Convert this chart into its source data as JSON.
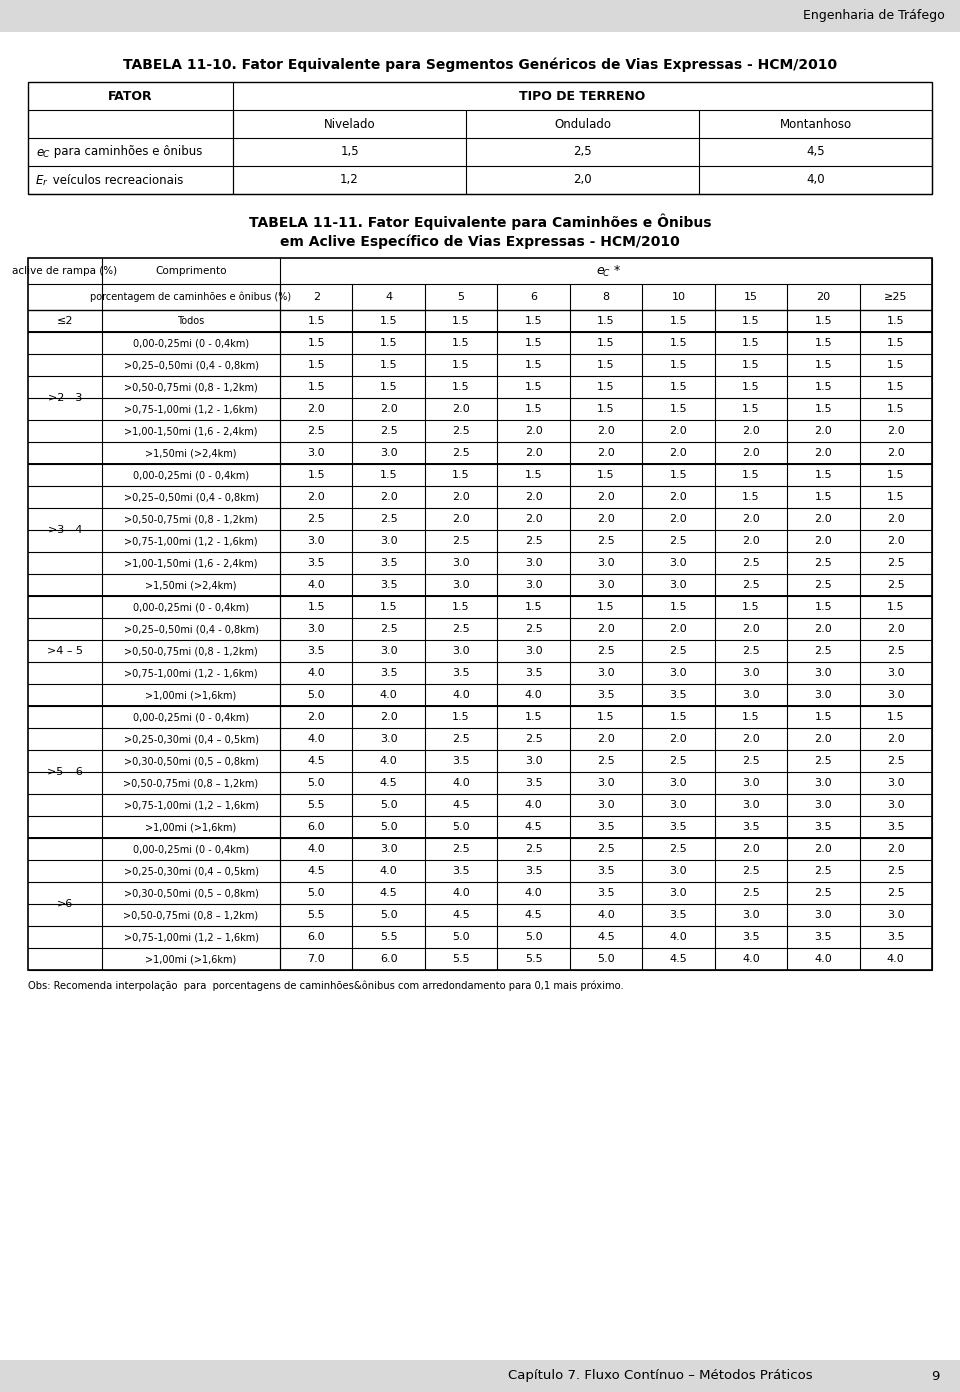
{
  "page_header": "Engenharia de Tráfego",
  "table1_title": "TABELA 11-10. Fator Equivalente para Segmentos Genéricos de Vias Expressas - HCM/2010",
  "table1_col1_header": "FATOR",
  "table1_col2_header": "TIPO DE TERRENO",
  "table1_sub_headers": [
    "Nivelado",
    "Ondulado",
    "Montanhoso"
  ],
  "table1_row_labels": [
    "eC para caminhoes e onibus",
    "Er veiculos recreacionais"
  ],
  "table1_row_data": [
    [
      "1,5",
      "2,5",
      "4,5"
    ],
    [
      "1,2",
      "2,0",
      "4,0"
    ]
  ],
  "table2_title_line1": "TABELA 11-11. Fator Equivalente para Caminhões e Ônibus",
  "table2_title_line2": "em Aclive Específico de Vias Expressas - HCM/2010",
  "table2_col1": "aclive de rampa (%)",
  "table2_col2": "Comprimento",
  "table2_pct_header": "porcentagem de caminhões e ônibus (%)",
  "table2_pct_values": [
    "2",
    "4",
    "5",
    "6",
    "8",
    "10",
    "15",
    "20",
    "≥25"
  ],
  "table2_data": [
    {
      "grade": "≤2",
      "rows": [
        {
          "length": "Todos",
          "values": [
            "1.5",
            "1.5",
            "1.5",
            "1.5",
            "1.5",
            "1.5",
            "1.5",
            "1.5",
            "1.5"
          ]
        }
      ]
    },
    {
      "grade": ">2 - 3",
      "rows": [
        {
          "length": "0,00-0,25mi (0 - 0,4km)",
          "values": [
            "1.5",
            "1.5",
            "1.5",
            "1.5",
            "1.5",
            "1.5",
            "1.5",
            "1.5",
            "1.5"
          ]
        },
        {
          "length": ">0,25–0,50mi (0,4 - 0,8km)",
          "values": [
            "1.5",
            "1.5",
            "1.5",
            "1.5",
            "1.5",
            "1.5",
            "1.5",
            "1.5",
            "1.5"
          ]
        },
        {
          "length": ">0,50-0,75mi (0,8 - 1,2km)",
          "values": [
            "1.5",
            "1.5",
            "1.5",
            "1.5",
            "1.5",
            "1.5",
            "1.5",
            "1.5",
            "1.5"
          ]
        },
        {
          "length": ">0,75-1,00mi (1,2 - 1,6km)",
          "values": [
            "2.0",
            "2.0",
            "2.0",
            "1.5",
            "1.5",
            "1.5",
            "1.5",
            "1.5",
            "1.5"
          ]
        },
        {
          "length": ">1,00-1,50mi (1,6 - 2,4km)",
          "values": [
            "2.5",
            "2.5",
            "2.5",
            "2.0",
            "2.0",
            "2.0",
            "2.0",
            "2.0",
            "2.0"
          ]
        },
        {
          "length": ">1,50mi (>2,4km)",
          "values": [
            "3.0",
            "3.0",
            "2.5",
            "2.0",
            "2.0",
            "2.0",
            "2.0",
            "2.0",
            "2.0"
          ]
        }
      ]
    },
    {
      "grade": ">3 - 4",
      "rows": [
        {
          "length": "0,00-0,25mi (0 - 0,4km)",
          "values": [
            "1.5",
            "1.5",
            "1.5",
            "1.5",
            "1.5",
            "1.5",
            "1.5",
            "1.5",
            "1.5"
          ]
        },
        {
          "length": ">0,25–0,50mi (0,4 - 0,8km)",
          "values": [
            "2.0",
            "2.0",
            "2.0",
            "2.0",
            "2.0",
            "2.0",
            "1.5",
            "1.5",
            "1.5"
          ]
        },
        {
          "length": ">0,50-0,75mi (0,8 - 1,2km)",
          "values": [
            "2.5",
            "2.5",
            "2.0",
            "2.0",
            "2.0",
            "2.0",
            "2.0",
            "2.0",
            "2.0"
          ]
        },
        {
          "length": ">0,75-1,00mi (1,2 - 1,6km)",
          "values": [
            "3.0",
            "3.0",
            "2.5",
            "2.5",
            "2.5",
            "2.5",
            "2.0",
            "2.0",
            "2.0"
          ]
        },
        {
          "length": ">1,00-1,50mi (1,6 - 2,4km)",
          "values": [
            "3.5",
            "3.5",
            "3.0",
            "3.0",
            "3.0",
            "3.0",
            "2.5",
            "2.5",
            "2.5"
          ]
        },
        {
          "length": ">1,50mi (>2,4km)",
          "values": [
            "4.0",
            "3.5",
            "3.0",
            "3.0",
            "3.0",
            "3.0",
            "2.5",
            "2.5",
            "2.5"
          ]
        }
      ]
    },
    {
      "grade": ">4 – 5",
      "rows": [
        {
          "length": "0,00-0,25mi (0 - 0,4km)",
          "values": [
            "1.5",
            "1.5",
            "1.5",
            "1.5",
            "1.5",
            "1.5",
            "1.5",
            "1.5",
            "1.5"
          ]
        },
        {
          "length": ">0,25–0,50mi (0,4 - 0,8km)",
          "values": [
            "3.0",
            "2.5",
            "2.5",
            "2.5",
            "2.0",
            "2.0",
            "2.0",
            "2.0",
            "2.0"
          ]
        },
        {
          "length": ">0,50-0,75mi (0,8 - 1,2km)",
          "values": [
            "3.5",
            "3.0",
            "3.0",
            "3.0",
            "2.5",
            "2.5",
            "2.5",
            "2.5",
            "2.5"
          ]
        },
        {
          "length": ">0,75-1,00mi (1,2 - 1,6km)",
          "values": [
            "4.0",
            "3.5",
            "3.5",
            "3.5",
            "3.0",
            "3.0",
            "3.0",
            "3.0",
            "3.0"
          ]
        },
        {
          "length": ">1,00mi (>1,6km)",
          "values": [
            "5.0",
            "4.0",
            "4.0",
            "4.0",
            "3.5",
            "3.5",
            "3.0",
            "3.0",
            "3.0"
          ]
        }
      ]
    },
    {
      "grade": ">5 – 6",
      "rows": [
        {
          "length": "0,00-0,25mi (0 - 0,4km)",
          "values": [
            "2.0",
            "2.0",
            "1.5",
            "1.5",
            "1.5",
            "1.5",
            "1.5",
            "1.5",
            "1.5"
          ]
        },
        {
          "length": ">0,25-0,30mi (0,4 – 0,5km)",
          "values": [
            "4.0",
            "3.0",
            "2.5",
            "2.5",
            "2.0",
            "2.0",
            "2.0",
            "2.0",
            "2.0"
          ]
        },
        {
          "length": ">0,30-0,50mi (0,5 – 0,8km)",
          "values": [
            "4.5",
            "4.0",
            "3.5",
            "3.0",
            "2.5",
            "2.5",
            "2.5",
            "2.5",
            "2.5"
          ]
        },
        {
          "length": ">0,50-0,75mi (0,8 – 1,2km)",
          "values": [
            "5.0",
            "4.5",
            "4.0",
            "3.5",
            "3.0",
            "3.0",
            "3.0",
            "3.0",
            "3.0"
          ]
        },
        {
          "length": ">0,75-1,00mi (1,2 – 1,6km)",
          "values": [
            "5.5",
            "5.0",
            "4.5",
            "4.0",
            "3.0",
            "3.0",
            "3.0",
            "3.0",
            "3.0"
          ]
        },
        {
          "length": ">1,00mi (>1,6km)",
          "values": [
            "6.0",
            "5.0",
            "5.0",
            "4.5",
            "3.5",
            "3.5",
            "3.5",
            "3.5",
            "3.5"
          ]
        }
      ]
    },
    {
      "grade": ">6",
      "rows": [
        {
          "length": "0,00-0,25mi (0 - 0,4km)",
          "values": [
            "4.0",
            "3.0",
            "2.5",
            "2.5",
            "2.5",
            "2.5",
            "2.0",
            "2.0",
            "2.0"
          ]
        },
        {
          "length": ">0,25-0,30mi (0,4 – 0,5km)",
          "values": [
            "4.5",
            "4.0",
            "3.5",
            "3.5",
            "3.5",
            "3.0",
            "2.5",
            "2.5",
            "2.5"
          ]
        },
        {
          "length": ">0,30-0,50mi (0,5 – 0,8km)",
          "values": [
            "5.0",
            "4.5",
            "4.0",
            "4.0",
            "3.5",
            "3.0",
            "2.5",
            "2.5",
            "2.5"
          ]
        },
        {
          "length": ">0,50-0,75mi (0,8 – 1,2km)",
          "values": [
            "5.5",
            "5.0",
            "4.5",
            "4.5",
            "4.0",
            "3.5",
            "3.0",
            "3.0",
            "3.0"
          ]
        },
        {
          "length": ">0,75-1,00mi (1,2 – 1,6km)",
          "values": [
            "6.0",
            "5.5",
            "5.0",
            "5.0",
            "4.5",
            "4.0",
            "3.5",
            "3.5",
            "3.5"
          ]
        },
        {
          "length": ">1,00mi (>1,6km)",
          "values": [
            "7.0",
            "6.0",
            "5.5",
            "5.5",
            "5.0",
            "4.5",
            "4.0",
            "4.0",
            "4.0"
          ]
        }
      ]
    }
  ],
  "obs_text": "Obs: Recomenda interpolação  para  porcentagens de caminhões&ônibus com arredondamento para 0,1 mais próximo.",
  "footer_text": "Capítulo 7. Fluxo Contínuo – Métodos Práticos",
  "footer_page": "9",
  "bg_color": "#ffffff",
  "header_bg": "#d9d9d9",
  "footer_bg": "#d9d9d9"
}
